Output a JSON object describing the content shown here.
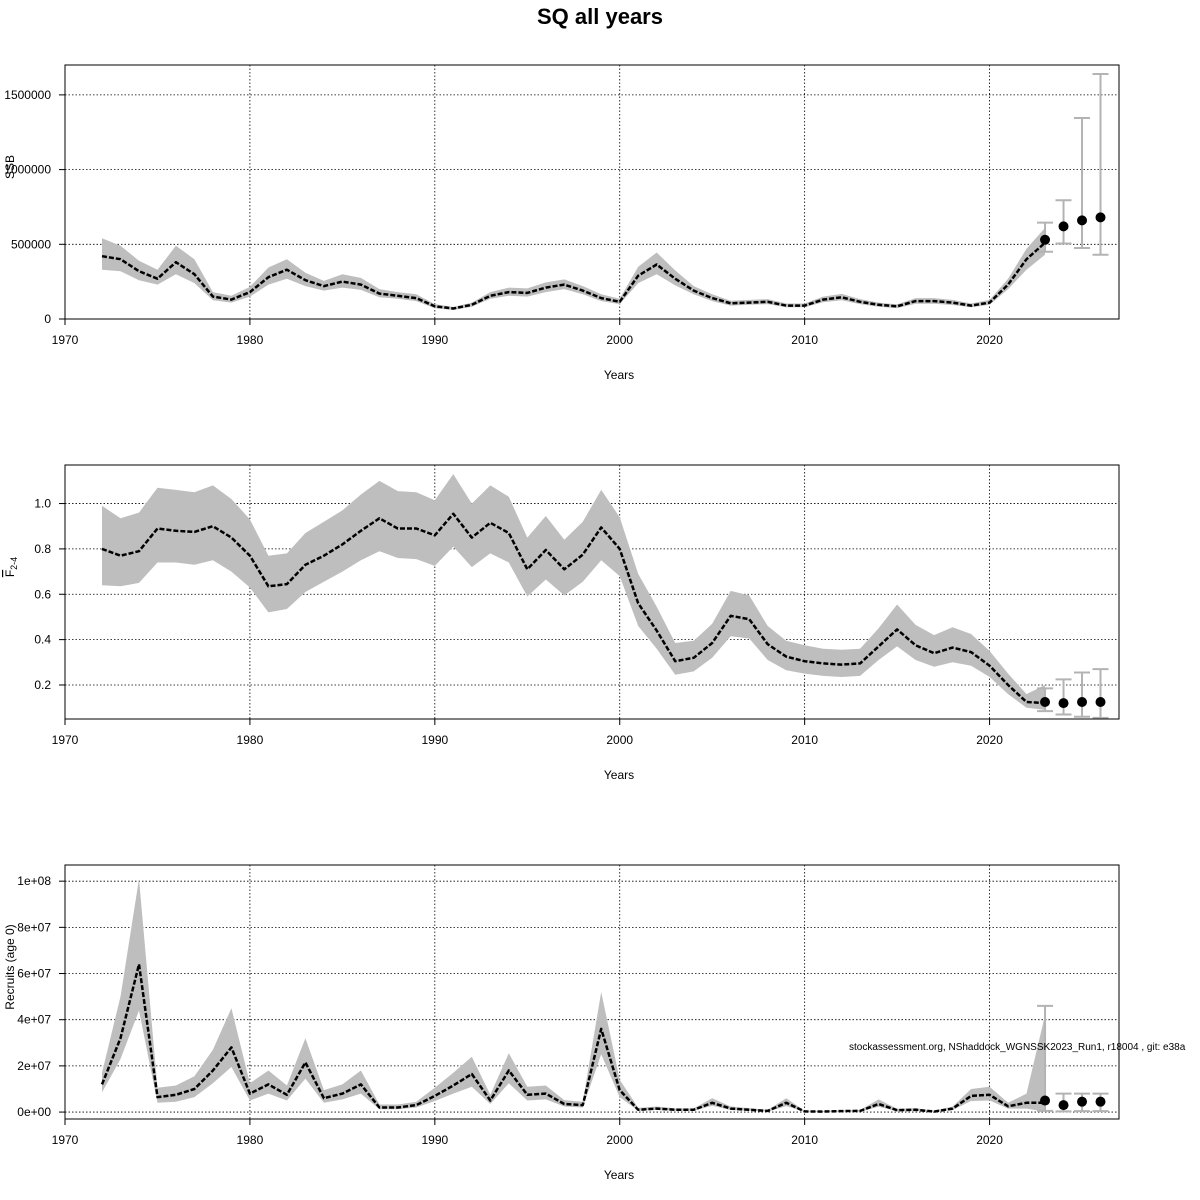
{
  "title": "SQ all years",
  "footnote": "stockassessment.org, NShaddock_WGNSSK2023_Run1, r18004 , git: e38a",
  "colors": {
    "band": "#bebebe",
    "line": "#000000",
    "grid": "#000000",
    "errorbar": "#b3b3b3"
  },
  "chart_data": [
    {
      "type": "line",
      "ylabel": "SSB",
      "xlabel": "Years",
      "xlim": [
        1970,
        2027
      ],
      "ylim": [
        0,
        1700000
      ],
      "xticks": [
        1970,
        1980,
        1990,
        2000,
        2010,
        2020
      ],
      "yticks": [
        0,
        500000,
        1000000,
        1500000
      ],
      "ytick_labels": [
        "0",
        "500000",
        "1000000",
        "1500000"
      ],
      "grid": true,
      "series": [
        {
          "x": [
            1972,
            1973,
            1974,
            1975,
            1976,
            1977,
            1978,
            1979,
            1980,
            1981,
            1982,
            1983,
            1984,
            1985,
            1986,
            1987,
            1988,
            1989,
            1990,
            1991,
            1992,
            1993,
            1994,
            1995,
            1996,
            1997,
            1998,
            1999,
            2000,
            2001,
            2002,
            2003,
            2004,
            2005,
            2006,
            2007,
            2008,
            2009,
            2010,
            2011,
            2012,
            2013,
            2014,
            2015,
            2016,
            2017,
            2018,
            2019,
            2020,
            2021,
            2022,
            2023
          ],
          "y": [
            420000,
            400000,
            320000,
            270000,
            380000,
            300000,
            150000,
            130000,
            180000,
            280000,
            330000,
            260000,
            220000,
            250000,
            230000,
            170000,
            155000,
            140000,
            85000,
            70000,
            95000,
            155000,
            180000,
            175000,
            210000,
            230000,
            190000,
            140000,
            115000,
            290000,
            365000,
            270000,
            190000,
            140000,
            105000,
            110000,
            115000,
            90000,
            90000,
            130000,
            145000,
            115000,
            95000,
            85000,
            120000,
            120000,
            110000,
            90000,
            110000,
            230000,
            400000,
            510000
          ],
          "lower": [
            330000,
            320000,
            260000,
            230000,
            300000,
            240000,
            125000,
            110000,
            150000,
            230000,
            270000,
            220000,
            190000,
            210000,
            195000,
            145000,
            135000,
            120000,
            72000,
            60000,
            82000,
            135000,
            155000,
            150000,
            180000,
            200000,
            165000,
            120000,
            100000,
            240000,
            300000,
            225000,
            165000,
            120000,
            90000,
            95000,
            100000,
            78000,
            78000,
            112000,
            125000,
            100000,
            82000,
            73000,
            102000,
            102000,
            94000,
            78000,
            95000,
            200000,
            330000,
            430000
          ],
          "upper": [
            540000,
            490000,
            390000,
            330000,
            490000,
            400000,
            180000,
            155000,
            215000,
            345000,
            400000,
            310000,
            255000,
            300000,
            275000,
            200000,
            180000,
            165000,
            100000,
            80000,
            110000,
            180000,
            210000,
            205000,
            245000,
            265000,
            220000,
            165000,
            135000,
            350000,
            445000,
            325000,
            220000,
            165000,
            122000,
            128000,
            133000,
            104000,
            104000,
            150000,
            168000,
            133000,
            110000,
            98000,
            140000,
            140000,
            128000,
            104000,
            128000,
            270000,
            470000,
            610000
          ]
        }
      ],
      "forecast": [
        {
          "x": 2023,
          "y": 530000,
          "lower": 450000,
          "upper": 645000
        },
        {
          "x": 2024,
          "y": 620000,
          "lower": 505000,
          "upper": 795000
        },
        {
          "x": 2025,
          "y": 660000,
          "lower": 475000,
          "upper": 1345000
        },
        {
          "x": 2026,
          "y": 680000,
          "lower": 430000,
          "upper": 1640000
        }
      ]
    },
    {
      "type": "line",
      "ylabel": "F",
      "ylabel_sub": "2-4",
      "xlabel": "Years",
      "xlim": [
        1970,
        2027
      ],
      "ylim": [
        0.05,
        1.17
      ],
      "xticks": [
        1970,
        1980,
        1990,
        2000,
        2010,
        2020
      ],
      "yticks": [
        0.2,
        0.4,
        0.6,
        0.8,
        1.0
      ],
      "ytick_labels": [
        "0.2",
        "0.4",
        "0.6",
        "0.8",
        "1.0"
      ],
      "grid": true,
      "series": [
        {
          "x": [
            1972,
            1973,
            1974,
            1975,
            1976,
            1977,
            1978,
            1979,
            1980,
            1981,
            1982,
            1983,
            1984,
            1985,
            1986,
            1987,
            1988,
            1989,
            1990,
            1991,
            1992,
            1993,
            1994,
            1995,
            1996,
            1997,
            1998,
            1999,
            2000,
            2001,
            2002,
            2003,
            2004,
            2005,
            2006,
            2007,
            2008,
            2009,
            2010,
            2011,
            2012,
            2013,
            2014,
            2015,
            2016,
            2017,
            2018,
            2019,
            2020,
            2021,
            2022,
            2023
          ],
          "y": [
            0.8,
            0.77,
            0.79,
            0.89,
            0.88,
            0.875,
            0.9,
            0.85,
            0.77,
            0.635,
            0.645,
            0.73,
            0.77,
            0.82,
            0.88,
            0.935,
            0.89,
            0.89,
            0.86,
            0.955,
            0.85,
            0.915,
            0.87,
            0.71,
            0.795,
            0.71,
            0.775,
            0.895,
            0.8,
            0.56,
            0.44,
            0.305,
            0.32,
            0.385,
            0.505,
            0.49,
            0.38,
            0.325,
            0.305,
            0.295,
            0.29,
            0.295,
            0.37,
            0.445,
            0.375,
            0.34,
            0.365,
            0.345,
            0.285,
            0.2,
            0.125,
            0.12
          ],
          "lower": [
            0.64,
            0.635,
            0.65,
            0.74,
            0.74,
            0.73,
            0.75,
            0.7,
            0.63,
            0.52,
            0.535,
            0.61,
            0.655,
            0.7,
            0.75,
            0.79,
            0.76,
            0.755,
            0.725,
            0.81,
            0.72,
            0.78,
            0.74,
            0.59,
            0.665,
            0.595,
            0.655,
            0.75,
            0.68,
            0.46,
            0.36,
            0.245,
            0.26,
            0.32,
            0.415,
            0.405,
            0.31,
            0.265,
            0.25,
            0.24,
            0.235,
            0.24,
            0.31,
            0.37,
            0.31,
            0.28,
            0.3,
            0.285,
            0.235,
            0.16,
            0.1,
            0.09
          ],
          "upper": [
            0.99,
            0.935,
            0.96,
            1.07,
            1.06,
            1.05,
            1.08,
            1.02,
            0.93,
            0.77,
            0.78,
            0.87,
            0.92,
            0.97,
            1.04,
            1.1,
            1.055,
            1.05,
            1.015,
            1.13,
            1.0,
            1.08,
            1.03,
            0.85,
            0.945,
            0.84,
            0.92,
            1.06,
            0.94,
            0.69,
            0.545,
            0.385,
            0.395,
            0.47,
            0.615,
            0.595,
            0.46,
            0.395,
            0.375,
            0.36,
            0.355,
            0.36,
            0.45,
            0.555,
            0.465,
            0.42,
            0.455,
            0.425,
            0.35,
            0.25,
            0.16,
            0.2
          ]
        }
      ],
      "forecast": [
        {
          "x": 2023,
          "y": 0.125,
          "lower": 0.085,
          "upper": 0.185
        },
        {
          "x": 2024,
          "y": 0.12,
          "lower": 0.07,
          "upper": 0.225
        },
        {
          "x": 2025,
          "y": 0.125,
          "lower": 0.06,
          "upper": 0.255
        },
        {
          "x": 2026,
          "y": 0.125,
          "lower": 0.055,
          "upper": 0.27
        }
      ]
    },
    {
      "type": "line",
      "ylabel": "Recruits (age 0)",
      "xlabel": "Years",
      "xlim": [
        1970,
        2027
      ],
      "ylim": [
        -3000000,
        107000000
      ],
      "xticks": [
        1970,
        1980,
        1990,
        2000,
        2010,
        2020
      ],
      "yticks": [
        0,
        20000000,
        40000000,
        60000000,
        80000000,
        100000000
      ],
      "ytick_labels": [
        "0e+00",
        "2e+07",
        "4e+07",
        "6e+07",
        "8e+07",
        "1e+08"
      ],
      "grid": true,
      "series": [
        {
          "x": [
            1972,
            1973,
            1974,
            1975,
            1976,
            1977,
            1978,
            1979,
            1980,
            1981,
            1982,
            1983,
            1984,
            1985,
            1986,
            1987,
            1988,
            1989,
            1990,
            1991,
            1992,
            1993,
            1994,
            1995,
            1996,
            1997,
            1998,
            1999,
            2000,
            2001,
            2002,
            2003,
            2004,
            2005,
            2006,
            2007,
            2008,
            2009,
            2010,
            2011,
            2012,
            2013,
            2014,
            2015,
            2016,
            2017,
            2018,
            2019,
            2020,
            2021,
            2022,
            2023
          ],
          "y": [
            12000000,
            32000000,
            64000000,
            6500000,
            7500000,
            10000000,
            18000000,
            28000000,
            8000000,
            12000000,
            7500000,
            21500000,
            6000000,
            8000000,
            12000000,
            2000000,
            2000000,
            3000000,
            7000000,
            11500000,
            16500000,
            5000000,
            18000000,
            7500000,
            8000000,
            3500000,
            3000000,
            36000000,
            9500000,
            1000000,
            1500000,
            1000000,
            1000000,
            4000000,
            1500000,
            1000000,
            500000,
            4000000,
            300000,
            200000,
            400000,
            500000,
            3500000,
            800000,
            1000000,
            200000,
            1500000,
            7000000,
            7500000,
            2500000,
            4000000,
            4000000
          ],
          "lower": [
            8500000,
            23000000,
            44000000,
            4000000,
            4500000,
            6500000,
            12500000,
            19500000,
            5000000,
            8000000,
            5000000,
            14500000,
            4000000,
            5500000,
            8000000,
            1200000,
            1200000,
            2000000,
            4800000,
            8000000,
            11000000,
            3500000,
            12500000,
            5000000,
            5500000,
            2400000,
            2000000,
            25000000,
            6500000,
            600000,
            900000,
            600000,
            600000,
            2700000,
            900000,
            600000,
            200000,
            2600000,
            100000,
            100000,
            200000,
            200000,
            2300000,
            400000,
            500000,
            100000,
            900000,
            4800000,
            5000000,
            1500000,
            1500000,
            200000
          ],
          "upper": [
            17000000,
            50000000,
            101000000,
            10500000,
            11500000,
            15500000,
            27000000,
            45000000,
            12500000,
            18000000,
            11500000,
            32000000,
            9500000,
            12000000,
            18000000,
            3300000,
            3300000,
            4500000,
            10500000,
            17000000,
            24000000,
            7500000,
            25500000,
            11000000,
            11500000,
            5200000,
            4500000,
            52000000,
            14000000,
            1800000,
            2400000,
            1600000,
            1600000,
            6000000,
            2400000,
            1700000,
            900000,
            6000000,
            600000,
            500000,
            700000,
            900000,
            5500000,
            1400000,
            1700000,
            500000,
            2400000,
            10000000,
            11000000,
            4000000,
            8000000,
            42000000
          ]
        }
      ],
      "forecast": [
        {
          "x": 2023,
          "y": 5000000,
          "lower": 500000,
          "upper": 46000000
        },
        {
          "x": 2024,
          "y": 3000000,
          "lower": 300000,
          "upper": 8000000
        },
        {
          "x": 2025,
          "y": 4500000,
          "lower": 400000,
          "upper": 8000000
        },
        {
          "x": 2026,
          "y": 4500000,
          "lower": 400000,
          "upper": 8000000
        }
      ]
    }
  ]
}
